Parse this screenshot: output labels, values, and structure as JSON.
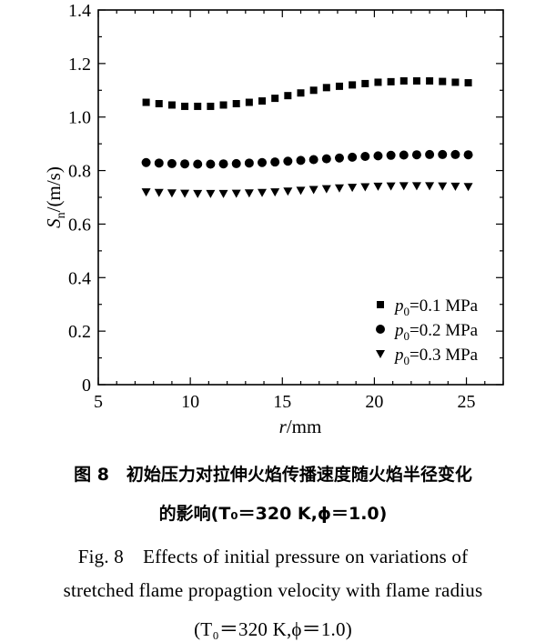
{
  "chart_data": {
    "type": "scatter",
    "xlabel": "r/mm",
    "ylabel": "Sn/(m/s)",
    "xlim": [
      5,
      27
    ],
    "ylim": [
      0,
      1.4
    ],
    "x_ticks": [
      "5",
      "10",
      "15",
      "20",
      "25"
    ],
    "y_ticks": [
      "0",
      "0.2",
      "0.4",
      "0.6",
      "0.8",
      "1.0",
      "1.2",
      "1.4"
    ],
    "legend_placement": "bottom-right",
    "grid": false,
    "x": [
      7.6,
      8.3,
      9.0,
      9.7,
      10.4,
      11.1,
      11.8,
      12.5,
      13.2,
      13.9,
      14.6,
      15.3,
      16.0,
      16.7,
      17.4,
      18.1,
      18.8,
      19.5,
      20.2,
      20.9,
      21.6,
      22.3,
      23.0,
      23.7,
      24.4,
      25.1
    ],
    "series": [
      {
        "name": "p0=0.1 MPa",
        "marker": "square",
        "values": [
          1.055,
          1.05,
          1.045,
          1.04,
          1.04,
          1.04,
          1.045,
          1.05,
          1.055,
          1.06,
          1.07,
          1.08,
          1.09,
          1.1,
          1.11,
          1.115,
          1.12,
          1.125,
          1.13,
          1.132,
          1.135,
          1.135,
          1.135,
          1.133,
          1.13,
          1.128
        ]
      },
      {
        "name": "p0=0.2 MPa",
        "marker": "circle",
        "values": [
          0.83,
          0.828,
          0.826,
          0.825,
          0.824,
          0.824,
          0.825,
          0.826,
          0.828,
          0.83,
          0.832,
          0.835,
          0.838,
          0.841,
          0.844,
          0.847,
          0.85,
          0.853,
          0.855,
          0.857,
          0.858,
          0.859,
          0.86,
          0.86,
          0.86,
          0.859
        ]
      },
      {
        "name": "p0=0.3 MPa",
        "marker": "triangle-down",
        "values": [
          0.72,
          0.718,
          0.716,
          0.715,
          0.714,
          0.714,
          0.714,
          0.715,
          0.716,
          0.718,
          0.72,
          0.723,
          0.726,
          0.729,
          0.732,
          0.735,
          0.737,
          0.739,
          0.741,
          0.742,
          0.743,
          0.743,
          0.743,
          0.742,
          0.741,
          0.74
        ]
      }
    ],
    "legend": [
      {
        "pre": "p",
        "sub": "0",
        "post": "=0.1 MPa"
      },
      {
        "pre": "p",
        "sub": "0",
        "post": "=0.2 MPa"
      },
      {
        "pre": "p",
        "sub": "0",
        "post": "=0.3 MPa"
      }
    ]
  },
  "axis_text": {
    "y_main": "S",
    "y_sub": "n",
    "y_rest": "/(m/s)",
    "x_main": "r",
    "x_rest": "/mm"
  },
  "caption": {
    "cn_line1": "图 8　初始压力对拉伸火焰传播速度随火焰半径变化",
    "cn_line2": "的影响(T₀＝320 K,ϕ＝1.0)",
    "en_line1": "Fig. 8　Effects of initial pressure on variations of",
    "en_line2": "stretched flame propagtion velocity with flame radius",
    "en_line3": "(T₀＝320 K,ϕ＝1.0)"
  },
  "colors": {
    "ink": "#000000",
    "background": "#ffffff"
  }
}
